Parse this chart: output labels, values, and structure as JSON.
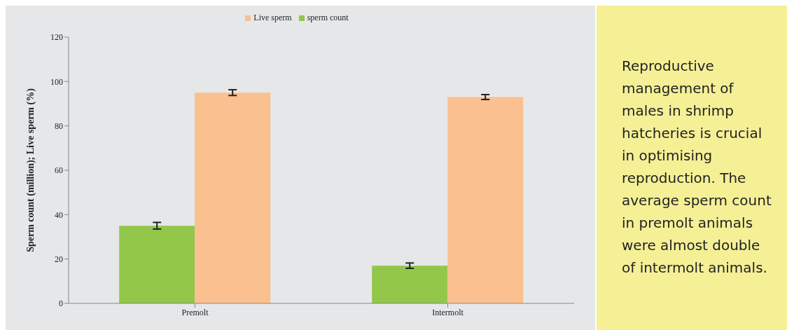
{
  "chart_data": [
    {
      "type": "bar",
      "ylabel": "Sperm count (million); Live sperm (%)",
      "categories": [
        "Premolt",
        "Intermolt"
      ],
      "series": [
        {
          "name": "sperm count",
          "color": "#92c749",
          "values": [
            35,
            17
          ],
          "errors": [
            1.5,
            1.2
          ]
        },
        {
          "name": "Live sperm",
          "color": "#fac08f",
          "values": [
            95,
            93
          ],
          "errors": [
            1.3,
            1.1
          ]
        }
      ],
      "ylim": [
        0,
        120
      ],
      "yticks": [
        0,
        20,
        40,
        60,
        80,
        100,
        120
      ],
      "grid": false,
      "legend": "top"
    },
    {
      "type": "other",
      "annotations": [
        "Reproductive management of males in shrimp hatcheries is crucial in optimising reproduction. The average sperm count in premolt animals were almost double of intermolt animals."
      ]
    }
  ]
}
